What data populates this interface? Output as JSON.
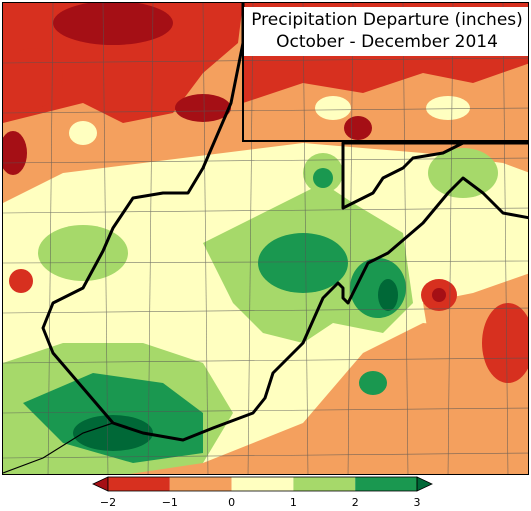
{
  "title": {
    "line1": "Precipitation Departure (inches)",
    "line2": "October - December 2014"
  },
  "colors": {
    "c_neg2_below": "#a50f15",
    "c_neg2": "#d7301f",
    "c_neg1": "#f4a05e",
    "c_0": "#ffffc0",
    "c_1": "#a6d96a",
    "c_2": "#1a9850",
    "c_3_above": "#006837",
    "border_state": "#000000",
    "border_county": "#555555"
  },
  "legend": {
    "ticks": [
      "−2",
      "−1",
      "0",
      "1",
      "2",
      "3"
    ],
    "bins": [
      {
        "from": -2,
        "to": -1,
        "color": "#d7301f"
      },
      {
        "from": -1,
        "to": 0,
        "color": "#f4a05e"
      },
      {
        "from": 0,
        "to": 1,
        "color": "#ffffc0"
      },
      {
        "from": 1,
        "to": 2,
        "color": "#a6d96a"
      },
      {
        "from": 2,
        "to": 3,
        "color": "#1a9850"
      }
    ]
  }
}
